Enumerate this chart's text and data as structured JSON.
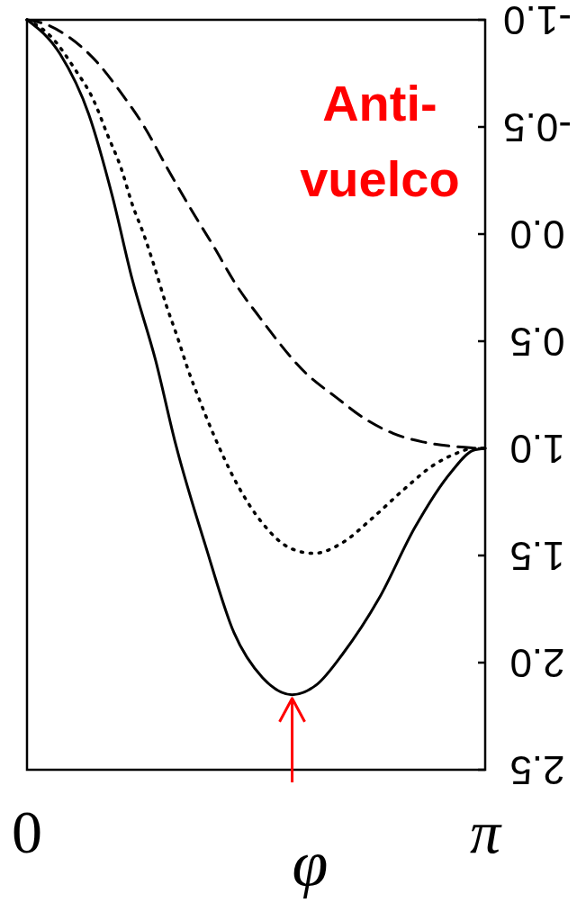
{
  "chart_data": {
    "type": "line",
    "xlabel": "φ",
    "xlim": [
      0,
      3.1416
    ],
    "xticks": [
      {
        "value": 0,
        "label": "0"
      },
      {
        "value": 3.1416,
        "label": "π"
      }
    ],
    "ylim": [
      2.5,
      -1.0
    ],
    "yticks": [
      {
        "value": -1.0,
        "label": "-1.0"
      },
      {
        "value": -0.5,
        "label": "-0.5"
      },
      {
        "value": 0,
        "label": "0.0"
      },
      {
        "value": 0.5,
        "label": "0.5"
      },
      {
        "value": 1.0,
        "label": "1.0"
      },
      {
        "value": 1.5,
        "label": "1.5"
      },
      {
        "value": 2.0,
        "label": "2.0"
      },
      {
        "value": 2.5,
        "label": "2.5"
      }
    ],
    "grid": false,
    "marker": "none",
    "annotations": [
      "Anti-\nvuelco"
    ],
    "series": [
      {
        "color": "#000000",
        "line_style": "solid",
        "x": [
          0,
          0.227,
          0.423,
          0.584,
          0.721,
          0.882,
          1.019,
          1.222,
          1.419,
          1.615,
          1.818,
          1.991,
          2.164,
          2.414,
          2.659,
          2.909,
          3.058,
          3.1416
        ],
        "values": [
          -1.0,
          -0.84,
          -0.56,
          -0.18,
          0.21,
          0.59,
          0.98,
          1.45,
          1.86,
          2.07,
          2.15,
          2.1,
          1.96,
          1.7,
          1.37,
          1.11,
          1.01,
          1.0
        ]
      },
      {
        "color": "#000000",
        "line_style": "dotted",
        "x": [
          0,
          0.167,
          0.328,
          0.453,
          0.554,
          0.644,
          0.721,
          0.805,
          0.882,
          0.954,
          1.031,
          1.103,
          1.192,
          1.282,
          1.443,
          1.615,
          1.818,
          1.967,
          2.164,
          2.361,
          2.587,
          2.784,
          2.957,
          3.058,
          3.1416
        ],
        "values": [
          -1.0,
          -0.92,
          -0.77,
          -0.63,
          -0.46,
          -0.31,
          -0.14,
          0.01,
          0.17,
          0.33,
          0.48,
          0.63,
          0.79,
          0.94,
          1.17,
          1.35,
          1.47,
          1.49,
          1.44,
          1.33,
          1.19,
          1.08,
          1.02,
          1.0,
          1.0
        ]
      },
      {
        "color": "#000000",
        "line_style": "dashed",
        "x": [
          0,
          0.125,
          0.286,
          0.483,
          0.644,
          0.805,
          0.96,
          1.121,
          1.282,
          1.437,
          1.597,
          1.913,
          2.116,
          2.313,
          2.51,
          2.713,
          2.909,
          3.1416
        ],
        "values": [
          -1.0,
          -0.98,
          -0.92,
          -0.8,
          -0.66,
          -0.5,
          -0.31,
          -0.12,
          0.06,
          0.24,
          0.39,
          0.65,
          0.76,
          0.86,
          0.93,
          0.97,
          0.99,
          1.0
        ]
      }
    ]
  }
}
